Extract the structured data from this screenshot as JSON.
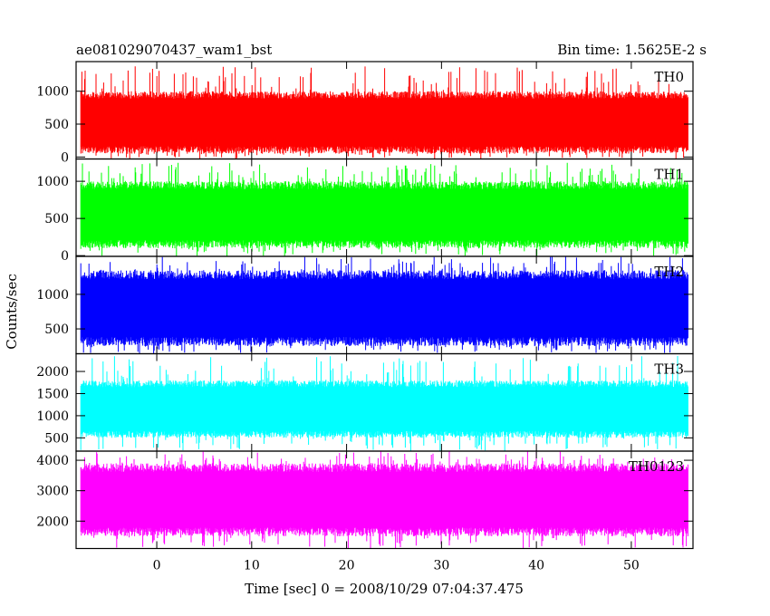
{
  "header": {
    "left_title": "ae081029070437_wam1_bst",
    "right_title": "Bin time: 1.5625E-2 s"
  },
  "axes": {
    "ylabel": "Counts/sec",
    "xlabel": "Time [sec] 0 = 2008/10/29 07:04:37.475"
  },
  "chart_data": {
    "type": "line",
    "xlim": [
      -8.5,
      56.5
    ],
    "x_data_range": [
      -8.0,
      56.0
    ],
    "x_ticks": [
      0,
      10,
      20,
      30,
      40,
      50
    ],
    "x_tick_labels": [
      "0",
      "10",
      "20",
      "30",
      "40",
      "50"
    ],
    "panels": [
      {
        "name": "TH0",
        "color": "#ff0000",
        "ylim": [
          -30,
          1450
        ],
        "yticks": [
          0,
          500,
          1000
        ],
        "ytick_labels": [
          "0",
          "500",
          "1000"
        ],
        "band_low": 50,
        "band_high": 1000,
        "peak_max": 1400
      },
      {
        "name": "TH1",
        "color": "#00ff00",
        "ylim": [
          -10,
          1300
        ],
        "yticks": [
          0,
          500,
          1000
        ],
        "ytick_labels": [
          "0",
          "500",
          "1000"
        ],
        "band_low": 100,
        "band_high": 1000,
        "peak_max": 1250
      },
      {
        "name": "TH2",
        "color": "#0000ff",
        "ylim": [
          140,
          1550
        ],
        "yticks": [
          500,
          1000
        ],
        "ytick_labels": [
          "500",
          "1000"
        ],
        "band_low": 250,
        "band_high": 1350,
        "peak_max": 1550
      },
      {
        "name": "TH3",
        "color": "#00ffff",
        "ylim": [
          200,
          2400
        ],
        "yticks": [
          500,
          1000,
          1500,
          2000
        ],
        "ytick_labels": [
          "500",
          "1000",
          "1500",
          "2000"
        ],
        "band_low": 500,
        "band_high": 1800,
        "peak_max": 2350
      },
      {
        "name": "TH0123",
        "color": "#ff00ff",
        "ylim": [
          1100,
          4300
        ],
        "yticks": [
          2000,
          3000,
          4000
        ],
        "ytick_labels": [
          "2000",
          "3000",
          "4000"
        ],
        "band_low": 1500,
        "band_high": 3900,
        "peak_max": 4300
      }
    ]
  }
}
